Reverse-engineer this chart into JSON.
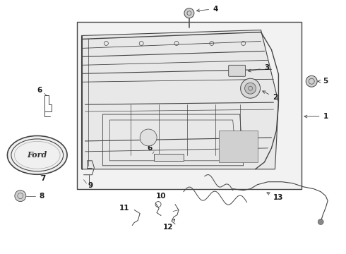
{
  "background_color": "#ffffff",
  "fig_width": 4.9,
  "fig_height": 3.6,
  "dpi": 100,
  "line_color": "#444444",
  "label_color": "#1a1a1a",
  "label_fontsize": 7.5
}
